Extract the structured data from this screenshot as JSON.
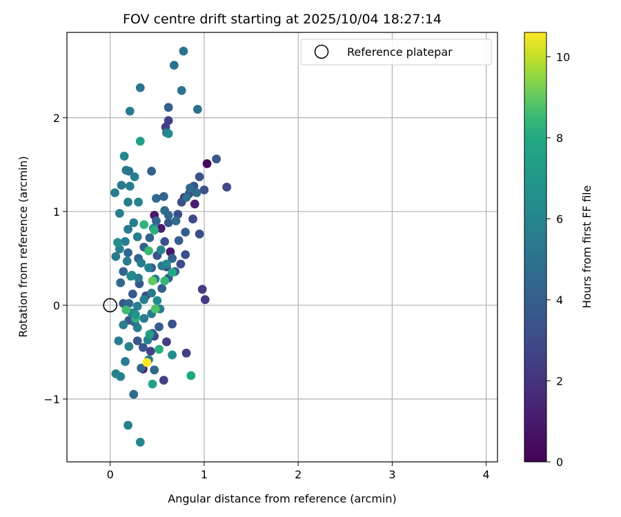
{
  "chart_data": {
    "type": "scatter",
    "title": "FOV centre drift starting at 2025/10/04 18:27:14",
    "xlabel": "Angular distance from reference (arcmin)",
    "ylabel": "Rotation from reference (arcmin)",
    "xlim": [
      -0.46,
      4.12
    ],
    "ylim": [
      -1.67,
      2.91
    ],
    "x_ticks": [
      0,
      1,
      2,
      3,
      4
    ],
    "x_tick_labels": [
      "0",
      "1",
      "2",
      "3",
      "4"
    ],
    "y_ticks": [
      -1,
      0,
      1,
      2
    ],
    "y_tick_labels": [
      "−1",
      "0",
      "1",
      "2"
    ],
    "grid": true,
    "legend": {
      "position": "top-right",
      "entries": [
        "Reference platepar"
      ]
    },
    "reference_point": {
      "x": 0,
      "y": 0
    },
    "colorbar": {
      "label": "Hours from first FF file",
      "colormap": "viridis",
      "range": [
        0,
        10.6
      ],
      "ticks": [
        0,
        2,
        4,
        6,
        8,
        10
      ],
      "tick_labels": [
        "0",
        "2",
        "4",
        "6",
        "8",
        "10"
      ]
    },
    "points": [
      [
        1.03,
        1.51,
        0.3
      ],
      [
        0.47,
        0.96,
        0.9
      ],
      [
        0.9,
        1.08,
        1.1
      ],
      [
        0.64,
        0.57,
        0.9
      ],
      [
        0.79,
        1.15,
        1.1
      ],
      [
        0.54,
        0.82,
        1.0
      ],
      [
        0.35,
        -0.68,
        1.0
      ],
      [
        0.59,
        1.9,
        2.5
      ],
      [
        0.62,
        1.97,
        2.5
      ],
      [
        0.98,
        0.17,
        2.3
      ],
      [
        1.01,
        0.06,
        2.3
      ],
      [
        0.81,
        -0.51,
        2.5
      ],
      [
        0.6,
        -0.39,
        2.4
      ],
      [
        0.57,
        -0.8,
        2.5
      ],
      [
        0.43,
        -0.49,
        2.6
      ],
      [
        0.6,
        0.41,
        2.8
      ],
      [
        1.24,
        1.26,
        3.0
      ],
      [
        0.88,
        0.92,
        2.9
      ],
      [
        0.95,
        0.76,
        3.1
      ],
      [
        0.75,
        0.44,
        3.0
      ],
      [
        0.8,
        0.54,
        3.2
      ],
      [
        0.38,
        0.1,
        3.1
      ],
      [
        0.47,
        -0.33,
        3.0
      ],
      [
        0.66,
        -0.2,
        3.3
      ],
      [
        1.13,
        1.56,
        3.6
      ],
      [
        0.95,
        1.37,
        3.4
      ],
      [
        0.89,
        1.27,
        3.5
      ],
      [
        1.0,
        1.23,
        3.3
      ],
      [
        0.84,
        1.19,
        3.3
      ],
      [
        0.76,
        1.1,
        3.2
      ],
      [
        0.72,
        0.97,
        3.2
      ],
      [
        0.62,
        0.88,
        3.5
      ],
      [
        0.58,
        0.68,
        3.3
      ],
      [
        0.5,
        0.53,
        3.4
      ],
      [
        0.44,
        0.4,
        3.5
      ],
      [
        0.31,
        0.23,
        3.6
      ],
      [
        0.24,
        0.12,
        3.7
      ],
      [
        0.14,
        0.02,
        3.8
      ],
      [
        0.2,
        -0.16,
        3.7
      ],
      [
        0.29,
        -0.38,
        3.6
      ],
      [
        0.35,
        -0.45,
        3.5
      ],
      [
        0.45,
        -0.3,
        3.6
      ],
      [
        0.52,
        -0.23,
        3.8
      ],
      [
        0.55,
        0.18,
        3.9
      ],
      [
        0.62,
        0.29,
        3.9
      ],
      [
        0.69,
        0.36,
        4.0
      ],
      [
        0.8,
        0.78,
        4.0
      ],
      [
        0.62,
        2.11,
        4.0
      ],
      [
        0.66,
        0.5,
        4.1
      ],
      [
        0.73,
        0.69,
        4.0
      ],
      [
        0.44,
        1.43,
        4.1
      ],
      [
        0.57,
        1.16,
        4.2
      ],
      [
        0.49,
        0.9,
        4.2
      ],
      [
        0.42,
        0.72,
        4.3
      ],
      [
        0.36,
        0.62,
        4.2
      ],
      [
        0.3,
        0.5,
        4.3
      ],
      [
        0.19,
        0.56,
        4.4
      ],
      [
        0.14,
        0.36,
        4.3
      ],
      [
        0.11,
        0.24,
        4.4
      ],
      [
        0.2,
        0.02,
        4.5
      ],
      [
        0.26,
        -0.18,
        4.3
      ],
      [
        0.33,
        -0.67,
        4.4
      ],
      [
        0.47,
        -0.69,
        4.5
      ],
      [
        0.25,
        -0.95,
        4.6
      ],
      [
        0.49,
        1.14,
        4.5
      ],
      [
        0.58,
        1.01,
        4.6
      ],
      [
        0.62,
        0.96,
        4.5
      ],
      [
        0.7,
        0.9,
        4.7
      ],
      [
        0.85,
        1.25,
        4.6
      ],
      [
        0.92,
        1.2,
        4.7
      ],
      [
        0.81,
        1.15,
        4.8
      ],
      [
        0.93,
        2.09,
        4.9
      ],
      [
        0.76,
        2.29,
        5.0
      ],
      [
        0.68,
        2.56,
        5.0
      ],
      [
        0.78,
        2.71,
        5.1
      ],
      [
        0.32,
        2.32,
        5.2
      ],
      [
        0.21,
        2.07,
        5.4
      ],
      [
        0.6,
        1.84,
        5.3
      ],
      [
        0.17,
        1.44,
        5.4
      ],
      [
        0.2,
        1.43,
        5.2
      ],
      [
        0.12,
        1.28,
        5.3
      ],
      [
        0.21,
        1.27,
        5.6
      ],
      [
        0.05,
        1.2,
        5.5
      ],
      [
        0.26,
        1.37,
        5.6
      ],
      [
        0.3,
        1.1,
        5.7
      ],
      [
        0.19,
        1.1,
        5.5
      ],
      [
        0.1,
        0.98,
        5.6
      ],
      [
        0.25,
        0.88,
        5.7
      ],
      [
        0.19,
        0.81,
        5.4
      ],
      [
        0.29,
        0.73,
        5.5
      ],
      [
        0.16,
        0.68,
        5.6
      ],
      [
        0.1,
        0.6,
        5.7
      ],
      [
        0.06,
        0.52,
        5.5
      ],
      [
        0.18,
        0.47,
        5.4
      ],
      [
        0.23,
        0.32,
        5.6
      ],
      [
        0.3,
        0.29,
        5.5
      ],
      [
        0.33,
        0.45,
        5.7
      ],
      [
        0.41,
        0.4,
        5.8
      ],
      [
        0.48,
        0.28,
        5.7
      ],
      [
        0.55,
        0.42,
        5.5
      ],
      [
        0.44,
        0.13,
        5.4
      ],
      [
        0.36,
        0.06,
        5.6
      ],
      [
        0.29,
        -0.01,
        5.7
      ],
      [
        0.23,
        -0.08,
        5.8
      ],
      [
        0.29,
        -0.24,
        5.6
      ],
      [
        0.36,
        -0.14,
        5.5
      ],
      [
        0.44,
        -0.09,
        5.4
      ],
      [
        0.53,
        -0.04,
        5.6
      ],
      [
        0.4,
        -0.37,
        5.8
      ],
      [
        0.41,
        -0.58,
        5.7
      ],
      [
        0.14,
        -0.21,
        5.5
      ],
      [
        0.09,
        -0.38,
        5.6
      ],
      [
        0.2,
        -0.44,
        5.7
      ],
      [
        0.16,
        -0.6,
        5.5
      ],
      [
        0.06,
        -0.73,
        5.9
      ],
      [
        0.11,
        -0.76,
        5.8
      ],
      [
        0.19,
        -1.28,
        5.9
      ],
      [
        0.32,
        -1.46,
        6.0
      ],
      [
        0.15,
        1.59,
        6.0
      ],
      [
        0.62,
        1.83,
        6.3
      ],
      [
        0.46,
        0.82,
        6.2
      ],
      [
        0.54,
        0.59,
        6.1
      ],
      [
        0.6,
        0.44,
        6.2
      ],
      [
        0.5,
        0.05,
        6.3
      ],
      [
        0.66,
        -0.53,
        6.4
      ],
      [
        0.45,
        -0.84,
        7.6
      ],
      [
        0.32,
        1.75,
        7.4
      ],
      [
        0.36,
        0.86,
        8.3
      ],
      [
        0.47,
        0.8,
        8.2
      ],
      [
        0.41,
        0.58,
        8.5
      ],
      [
        0.66,
        0.35,
        8.0
      ],
      [
        0.45,
        0.26,
        9.0
      ],
      [
        0.58,
        0.26,
        8.4
      ],
      [
        0.17,
        -0.05,
        8.6
      ],
      [
        0.27,
        -0.14,
        8.3
      ],
      [
        0.52,
        -0.47,
        8.1
      ],
      [
        0.48,
        -0.04,
        8.8
      ],
      [
        0.42,
        -0.31,
        7.4
      ],
      [
        0.08,
        0.67,
        6.5
      ],
      [
        0.22,
        0.31,
        6.3
      ],
      [
        0.27,
        -0.1,
        6.8
      ],
      [
        0.86,
        -0.75,
        7.9
      ],
      [
        0.39,
        -0.61,
        10.6
      ]
    ]
  }
}
